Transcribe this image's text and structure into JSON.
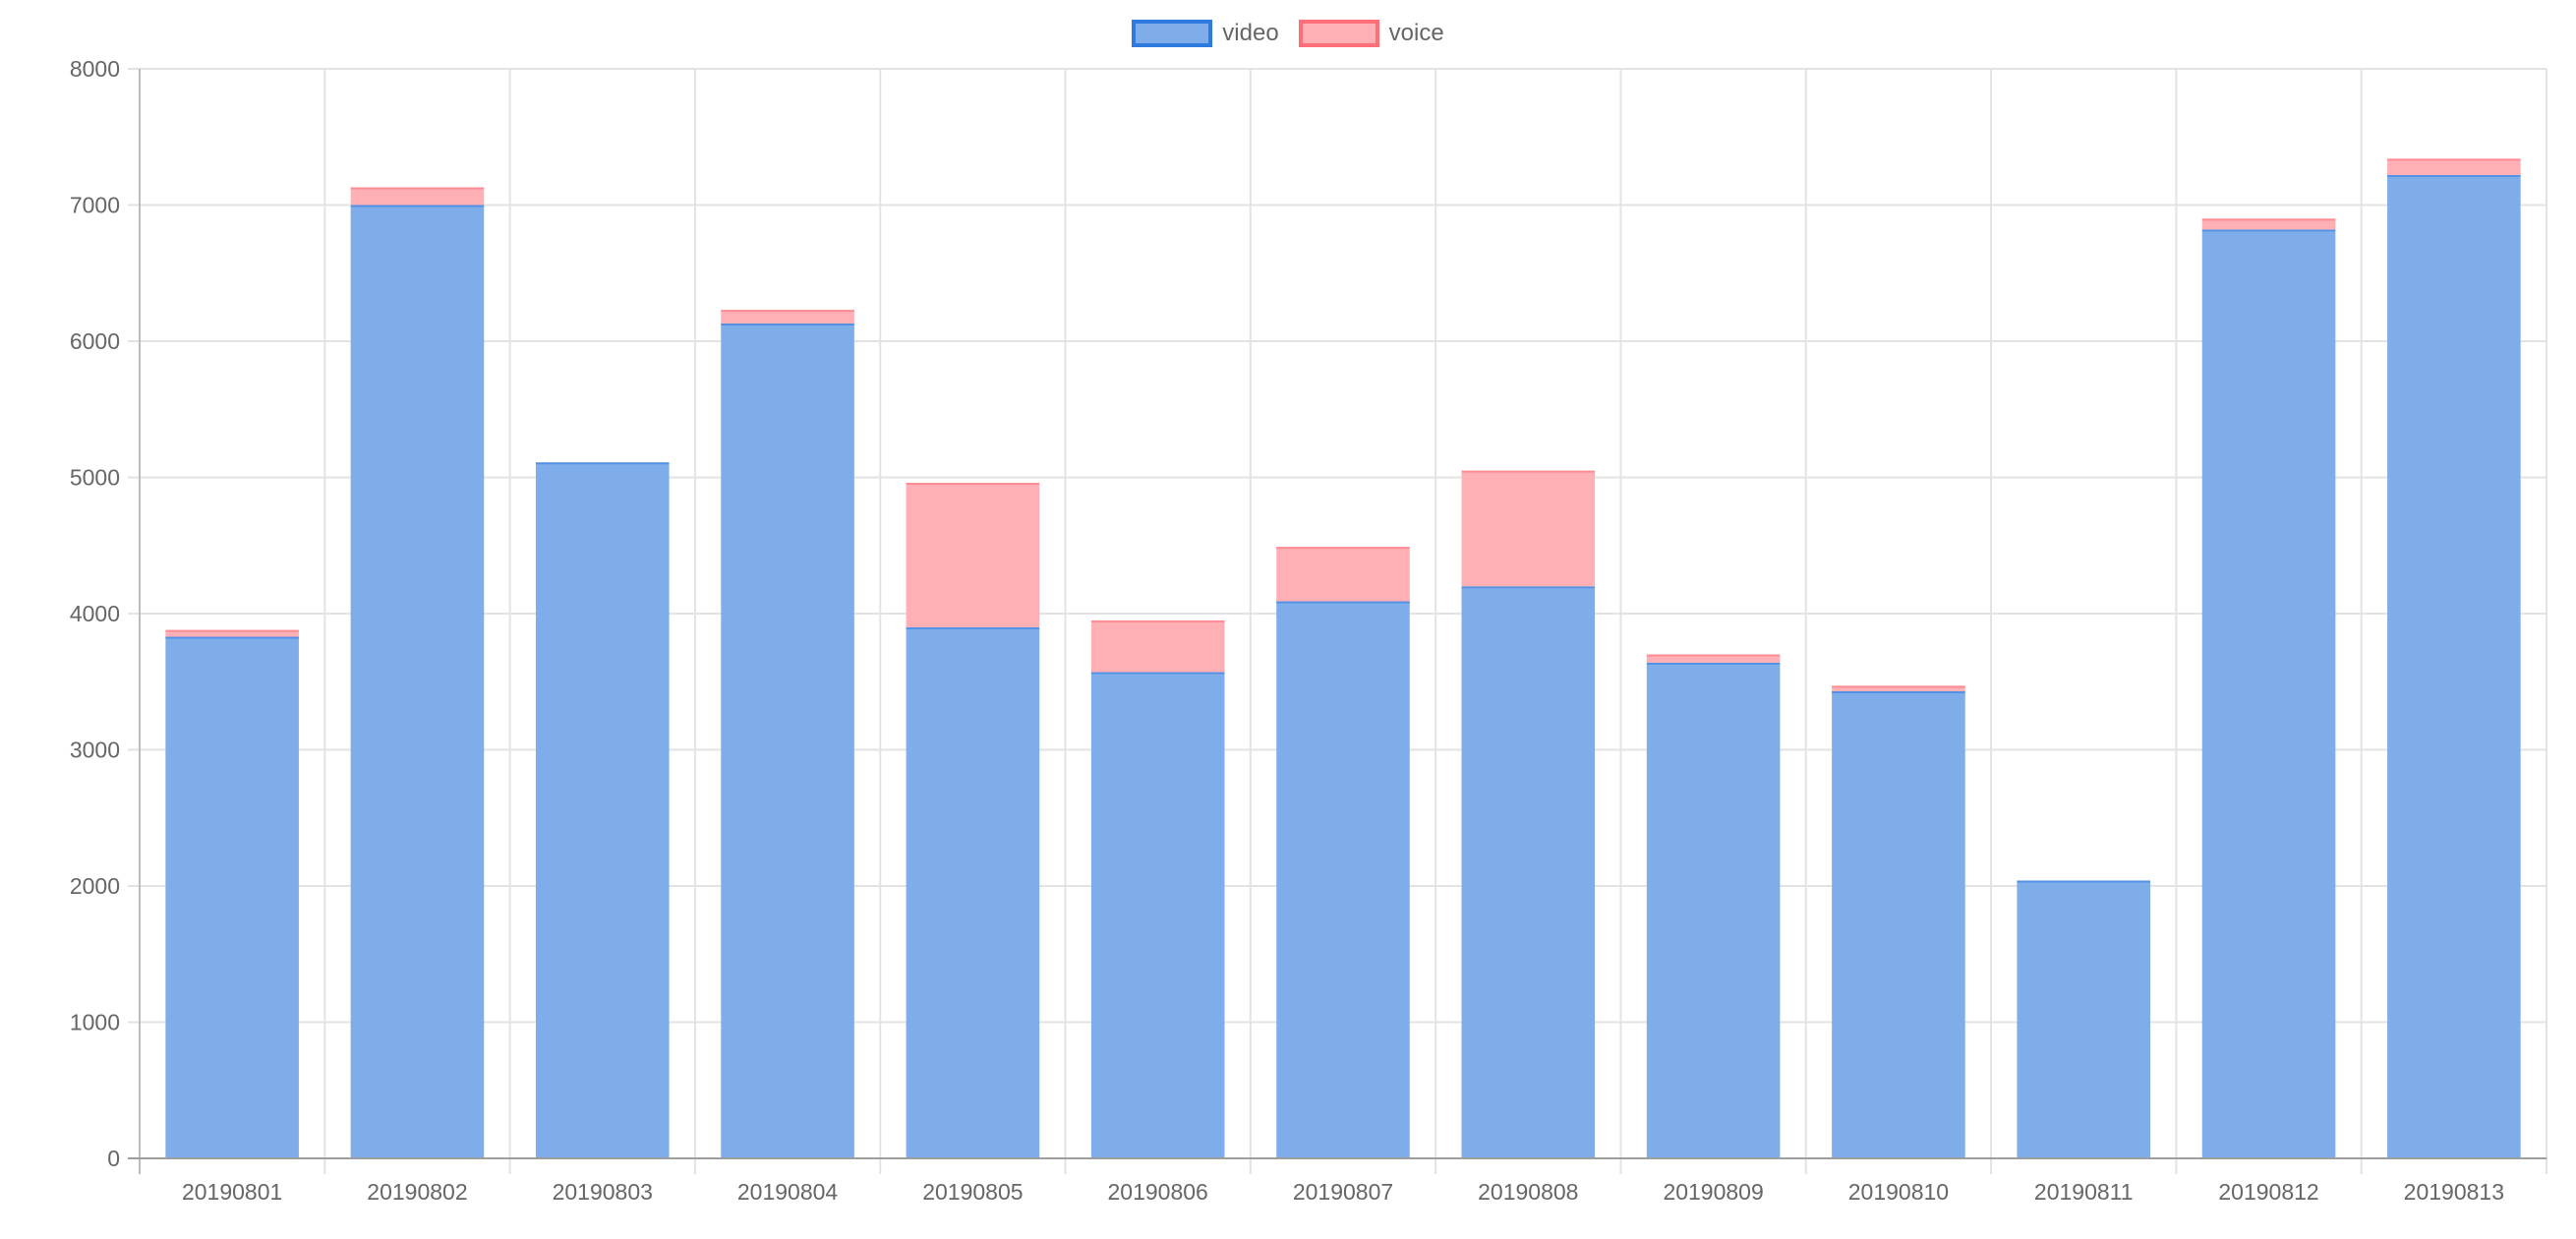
{
  "chart_data": {
    "type": "bar",
    "stacked": true,
    "title": "",
    "xlabel": "",
    "ylabel": "",
    "legend_position": "top",
    "grid": true,
    "ylim": [
      0,
      8000
    ],
    "yticks": [
      0,
      1000,
      2000,
      3000,
      4000,
      5000,
      6000,
      7000,
      8000
    ],
    "categories": [
      "20190801",
      "20190802",
      "20190803",
      "20190804",
      "20190805",
      "20190806",
      "20190807",
      "20190808",
      "20190809",
      "20190810",
      "20190811",
      "20190812",
      "20190813"
    ],
    "series": [
      {
        "name": "video",
        "fill": "#7fadea",
        "border": "#2f7adf",
        "values": [
          3830,
          7000,
          5110,
          6130,
          3900,
          3570,
          4090,
          4200,
          3640,
          3430,
          2040,
          6820,
          7220
        ]
      },
      {
        "name": "voice",
        "fill": "#feb0b4",
        "border": "#ff6f7a",
        "values": [
          50,
          130,
          0,
          100,
          1060,
          380,
          400,
          850,
          60,
          40,
          0,
          80,
          120
        ]
      }
    ]
  }
}
